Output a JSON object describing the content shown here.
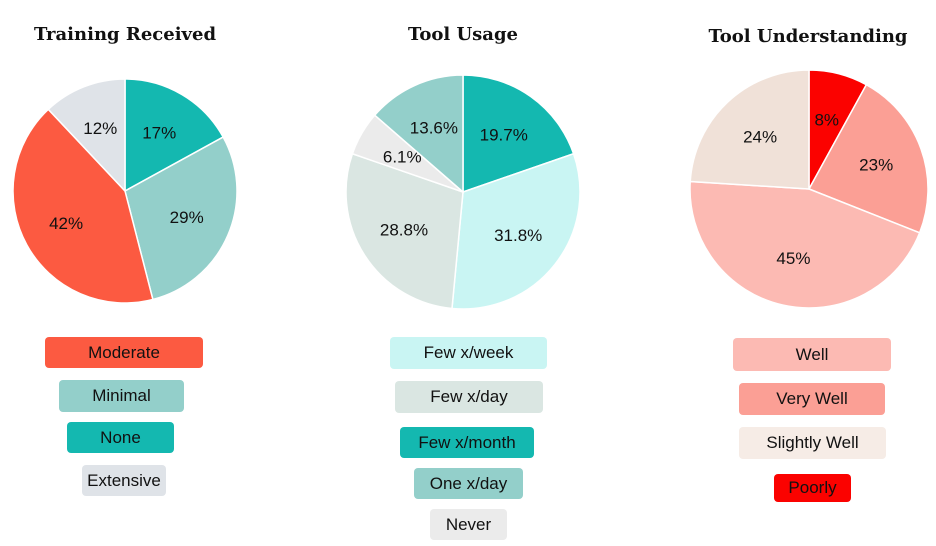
{
  "chart_data": [
    {
      "type": "pie",
      "title": "Training Received",
      "slices": [
        {
          "label": "None",
          "value": 17,
          "display": "17%",
          "color": "#14b8b0"
        },
        {
          "label": "Minimal",
          "value": 29,
          "display": "29%",
          "color": "#93cfca"
        },
        {
          "label": "Moderate",
          "value": 42,
          "display": "42%",
          "color": "#fc5a41"
        },
        {
          "label": "Extensive",
          "value": 12,
          "display": "12%",
          "color": "#dfe3e8"
        }
      ],
      "legend": [
        "Moderate",
        "Minimal",
        "None",
        "Extensive"
      ]
    },
    {
      "type": "pie",
      "title": "Tool Usage",
      "slices": [
        {
          "label": "Few x/month",
          "value": 19.7,
          "display": "19.7%",
          "color": "#14b8b0"
        },
        {
          "label": "Few x/week",
          "value": 31.8,
          "display": "31.8%",
          "color": "#c9f5f3"
        },
        {
          "label": "Few x/day",
          "value": 28.8,
          "display": "28.8%",
          "color": "#dae6e2"
        },
        {
          "label": "Never",
          "value": 6.1,
          "display": "6.1%",
          "color": "#ebebeb"
        },
        {
          "label": "One x/day",
          "value": 13.6,
          "display": "13.6%",
          "color": "#93cfca"
        }
      ],
      "legend": [
        "Few x/week",
        "Few x/day",
        "Few x/month",
        "One x/day",
        "Never"
      ]
    },
    {
      "type": "pie",
      "title": "Tool Understanding",
      "slices": [
        {
          "label": "Poorly",
          "value": 8,
          "display": "8%",
          "color": "#fb0200"
        },
        {
          "label": "Very Well",
          "value": 23,
          "display": "23%",
          "color": "#fb9f95"
        },
        {
          "label": "Well",
          "value": 45,
          "display": "45%",
          "color": "#fcbab3"
        },
        {
          "label": "Slightly Well",
          "value": 24,
          "display": "24%",
          "color": "#f0e1d8"
        }
      ],
      "legend": [
        "Well",
        "Very Well",
        "Slightly Well",
        "Poorly"
      ]
    }
  ]
}
